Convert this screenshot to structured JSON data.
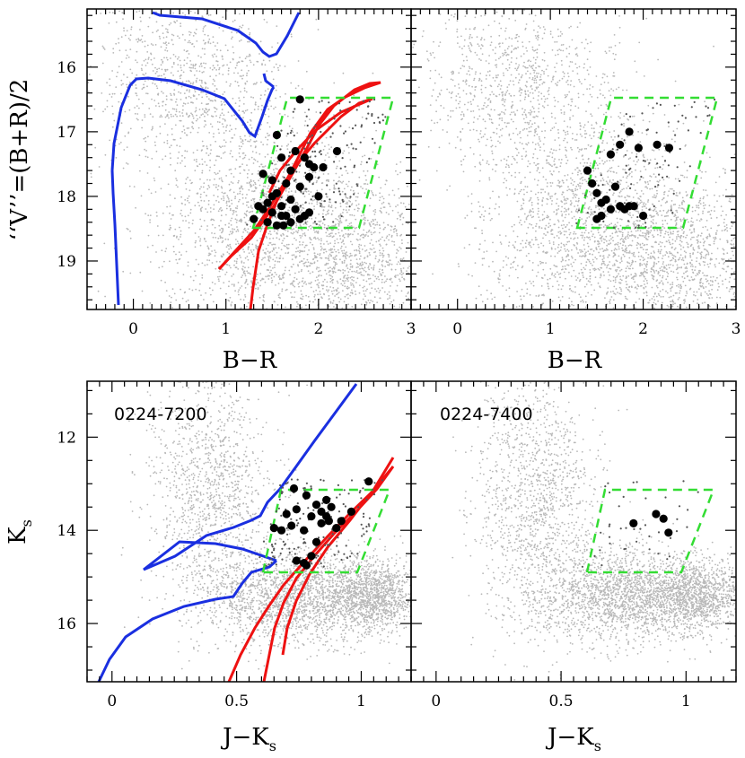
{
  "chart_data": [
    {
      "type": "scatter",
      "panel": "top-left",
      "xlabel": "B−R",
      "ylabel": "‘‘V’’=(B+R)/2",
      "xlim": [
        -0.5,
        3.0
      ],
      "ylim": [
        19.75,
        15.1
      ],
      "x_ticks": [
        "0",
        "1",
        "2",
        "3"
      ],
      "y_ticks": [
        "16",
        "17",
        "18",
        "19"
      ],
      "selection_box": [
        [
          1.2,
          18.5
        ],
        [
          1.72,
          16.5
        ],
        [
          2.8,
          16.5
        ],
        [
          2.28,
          18.5
        ]
      ],
      "highlighted_points": {
        "x": [
          1.55,
          1.8,
          1.75,
          1.85,
          1.9,
          1.95,
          1.6,
          1.7,
          1.4,
          1.5,
          1.65,
          1.8,
          1.9,
          2.0,
          1.55,
          1.7,
          1.45,
          1.6,
          1.75,
          1.9,
          1.35,
          1.5,
          1.65,
          1.8,
          1.3,
          1.45,
          1.6,
          1.4,
          1.55,
          1.7,
          2.05,
          2.2,
          1.85,
          1.5,
          1.62
        ],
        "y": [
          17.05,
          16.5,
          17.3,
          17.4,
          17.5,
          17.55,
          17.4,
          17.6,
          17.65,
          17.75,
          17.8,
          17.85,
          17.7,
          18.0,
          17.95,
          18.05,
          18.1,
          18.15,
          18.2,
          18.25,
          18.15,
          18.25,
          18.3,
          18.35,
          18.35,
          18.4,
          18.3,
          18.2,
          18.45,
          18.4,
          17.55,
          17.3,
          18.3,
          18.0,
          18.45
        ]
      }
    },
    {
      "type": "scatter",
      "panel": "top-right",
      "xlabel": "B−R",
      "xlim": [
        -0.5,
        3.0
      ],
      "ylim": [
        19.75,
        15.1
      ],
      "x_ticks": [
        "0",
        "1",
        "2",
        "3"
      ],
      "selection_box": [
        [
          1.2,
          18.5
        ],
        [
          1.72,
          16.5
        ],
        [
          2.8,
          16.5
        ],
        [
          2.28,
          18.5
        ]
      ],
      "highlighted_points": {
        "x": [
          1.65,
          1.75,
          1.85,
          1.95,
          2.15,
          2.28,
          1.4,
          1.45,
          1.5,
          1.55,
          1.6,
          1.7,
          1.75,
          1.8,
          1.85,
          1.9,
          1.65,
          1.55,
          2.0,
          1.5
        ],
        "y": [
          17.35,
          17.2,
          17.0,
          17.25,
          17.2,
          17.25,
          17.6,
          17.8,
          17.95,
          18.1,
          18.05,
          17.85,
          18.15,
          18.2,
          18.15,
          18.15,
          18.2,
          18.3,
          18.3,
          18.35
        ]
      }
    },
    {
      "type": "scatter",
      "panel": "bottom-left",
      "field_label": "0224-7200",
      "xlabel": "J−K",
      "xlabel_sub": "s",
      "ylabel": "K",
      "ylabel_sub": "s",
      "xlim": [
        -0.1,
        1.2
      ],
      "ylim": [
        17.25,
        10.8
      ],
      "x_ticks": [
        "0",
        "0.5",
        "1"
      ],
      "y_ticks": [
        "12",
        "14",
        "16"
      ],
      "selection_box": [
        [
          0.58,
          14.8
        ],
        [
          0.68,
          12.9
        ],
        [
          1.1,
          12.9
        ],
        [
          0.98,
          14.8
        ]
      ],
      "highlighted_points": {
        "x": [
          0.73,
          1.03,
          0.78,
          0.82,
          0.86,
          0.88,
          0.92,
          0.96,
          0.7,
          0.74,
          0.8,
          0.84,
          0.87,
          0.9,
          0.65,
          0.72,
          0.77,
          0.82,
          0.86,
          0.74,
          0.77,
          0.8,
          0.84,
          0.68,
          0.78
        ],
        "y": [
          13.1,
          12.95,
          13.25,
          13.45,
          13.35,
          13.5,
          13.8,
          13.6,
          13.65,
          13.55,
          13.7,
          13.6,
          13.8,
          13.95,
          13.95,
          13.9,
          14.0,
          14.25,
          13.7,
          14.65,
          14.7,
          14.55,
          13.85,
          14.0,
          14.75
        ]
      }
    },
    {
      "type": "scatter",
      "panel": "bottom-right",
      "field_label": "0224-7400",
      "xlabel": "J−K",
      "xlabel_sub": "s",
      "xlim": [
        -0.1,
        1.2
      ],
      "ylim": [
        17.25,
        10.8
      ],
      "x_ticks": [
        "0",
        "0.5",
        "1"
      ],
      "selection_box": [
        [
          0.58,
          14.8
        ],
        [
          0.68,
          12.9
        ],
        [
          1.1,
          12.9
        ],
        [
          0.98,
          14.8
        ]
      ],
      "highlighted_points": {
        "x": [
          0.79,
          0.88,
          0.91,
          0.93
        ],
        "y": [
          13.85,
          13.65,
          13.75,
          14.05
        ]
      }
    }
  ],
  "colors": {
    "field_stars": "#b8b8b8",
    "selected_stars": "#000000",
    "faint_selected": "#555555",
    "isochrone_young": "#1a2fe0",
    "isochrone_old": "#ee1111",
    "selection_box": "#33dd33"
  }
}
